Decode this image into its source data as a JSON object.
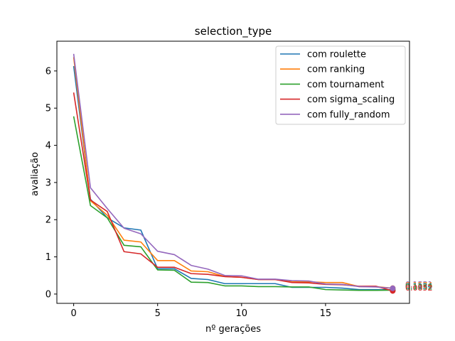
{
  "chart_data": {
    "type": "line",
    "title": "selection_type",
    "xlabel": "nº gerações",
    "ylabel": "avaliação",
    "xlim": [
      -1,
      20
    ],
    "ylim": [
      -0.25,
      6.8
    ],
    "xticks": [
      0,
      5,
      10,
      15
    ],
    "yticks": [
      0,
      1,
      2,
      3,
      4,
      5,
      6
    ],
    "grid": false,
    "legend_position": "top-right",
    "x": [
      0,
      1,
      2,
      3,
      4,
      5,
      6,
      7,
      8,
      9,
      10,
      11,
      12,
      13,
      14,
      15,
      16,
      17,
      18,
      19
    ],
    "series": [
      {
        "name": "com roulette",
        "color": "#1f77b4",
        "values": [
          6.13,
          2.55,
          2.05,
          1.78,
          1.72,
          0.68,
          0.68,
          0.42,
          0.39,
          0.28,
          0.28,
          0.28,
          0.28,
          0.18,
          0.18,
          0.18,
          0.16,
          0.12,
          0.12,
          0.1134
        ]
      },
      {
        "name": "com ranking",
        "color": "#ff7f0e",
        "values": [
          6.37,
          2.51,
          2.12,
          1.45,
          1.4,
          0.9,
          0.9,
          0.62,
          0.6,
          0.47,
          0.45,
          0.39,
          0.39,
          0.33,
          0.33,
          0.31,
          0.31,
          0.2,
          0.2,
          0.1574
        ]
      },
      {
        "name": "com tournament",
        "color": "#2ca02c",
        "values": [
          4.78,
          2.38,
          2.05,
          1.31,
          1.27,
          0.65,
          0.64,
          0.32,
          0.31,
          0.22,
          0.22,
          0.2,
          0.2,
          0.19,
          0.19,
          0.12,
          0.11,
          0.1,
          0.1,
          0.1052
        ]
      },
      {
        "name": "com sigma_scaling",
        "color": "#d62728",
        "values": [
          5.42,
          2.53,
          2.22,
          1.14,
          1.08,
          0.72,
          0.72,
          0.55,
          0.53,
          0.47,
          0.45,
          0.39,
          0.39,
          0.31,
          0.3,
          0.26,
          0.25,
          0.21,
          0.21,
          0.0852
        ]
      },
      {
        "name": "com fully_random",
        "color": "#9467bd",
        "values": [
          6.46,
          2.86,
          2.3,
          1.77,
          1.62,
          1.15,
          1.06,
          0.77,
          0.67,
          0.5,
          0.49,
          0.4,
          0.4,
          0.36,
          0.35,
          0.27,
          0.26,
          0.2,
          0.19,
          0.1551
        ]
      }
    ],
    "end_labels": [
      {
        "text": "0.1551",
        "color": "#9467bd"
      },
      {
        "text": "0.1574",
        "color": "#ff7f0e"
      },
      {
        "text": "0.1134",
        "color": "#1f77b4"
      },
      {
        "text": "0.1052",
        "color": "#2ca02c"
      },
      {
        "text": "0.0852",
        "color": "#d62728"
      }
    ]
  }
}
